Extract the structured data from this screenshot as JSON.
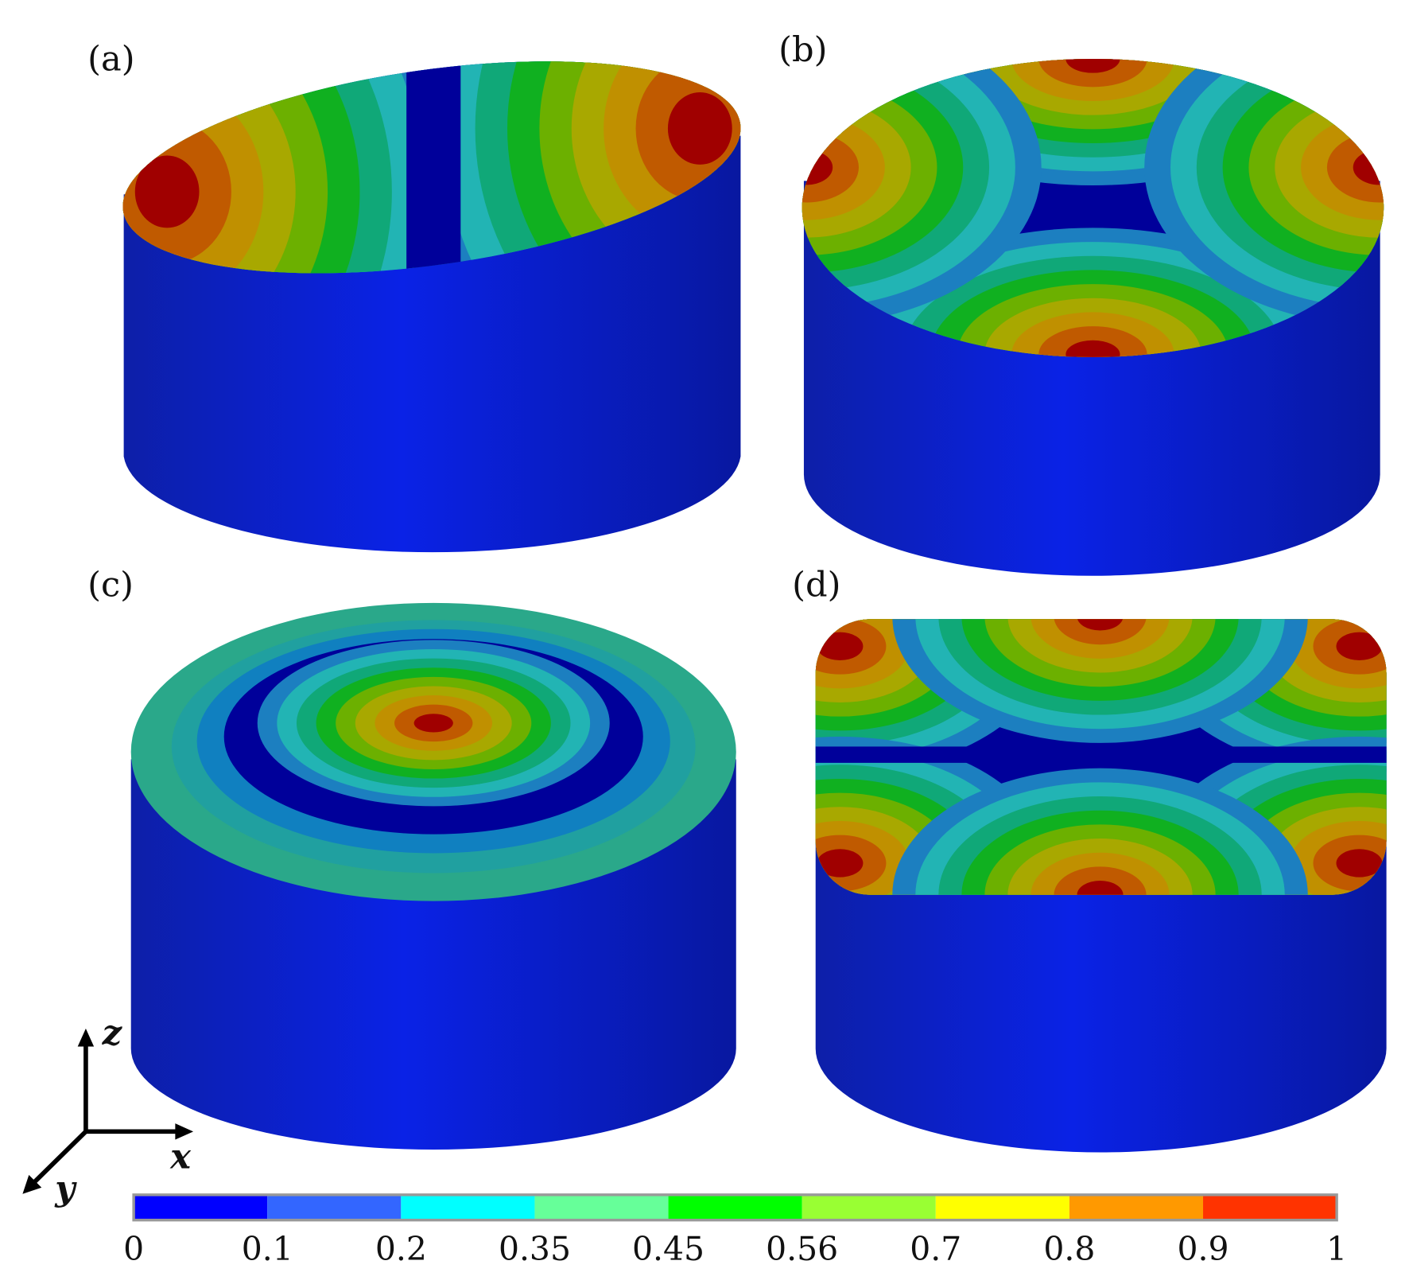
{
  "panels": [
    "(a)",
    "(b)",
    "(c)",
    "(d)"
  ],
  "axes": {
    "z": "z",
    "x": "x",
    "y": "y"
  },
  "colorbar": {
    "colors": [
      "#0000ff",
      "#3366ff",
      "#00ffff",
      "#66ff99",
      "#00ff00",
      "#99ff33",
      "#ffff00",
      "#ff9900",
      "#ff3300"
    ],
    "labels": [
      "0",
      "0.1",
      "0.2",
      "0.35",
      "0.45",
      "0.56",
      "0.7",
      "0.8",
      "0.9",
      "1"
    ]
  }
}
